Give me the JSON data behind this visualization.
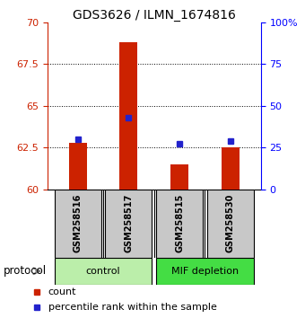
{
  "title": "GDS3626 / ILMN_1674816",
  "samples": [
    "GSM258516",
    "GSM258517",
    "GSM258515",
    "GSM258530"
  ],
  "bar_values": [
    62.8,
    68.8,
    61.5,
    62.5
  ],
  "percentile_values": [
    63.0,
    64.3,
    62.7,
    62.9
  ],
  "bar_bottom": 60.0,
  "ylim": [
    60,
    70
  ],
  "y_left_ticks": [
    60,
    62.5,
    65,
    67.5,
    70
  ],
  "y_right_ticks": [
    0,
    25,
    50,
    75,
    100
  ],
  "bar_color": "#cc2200",
  "percentile_color": "#2222cc",
  "group_info": [
    {
      "start": 0,
      "end": 1,
      "label": "control",
      "color": "#bbeeaa"
    },
    {
      "start": 2,
      "end": 3,
      "label": "MIF depletion",
      "color": "#44dd44"
    }
  ],
  "legend_items": [
    {
      "label": "count",
      "color": "#cc2200"
    },
    {
      "label": "percentile rank within the sample",
      "color": "#2222cc"
    }
  ],
  "protocol_label": "protocol",
  "sample_box_color": "#c8c8c8",
  "background_color": "#ffffff",
  "title_fontsize": 10,
  "tick_fontsize": 8,
  "bar_width": 0.35,
  "percentile_marker_size": 5
}
